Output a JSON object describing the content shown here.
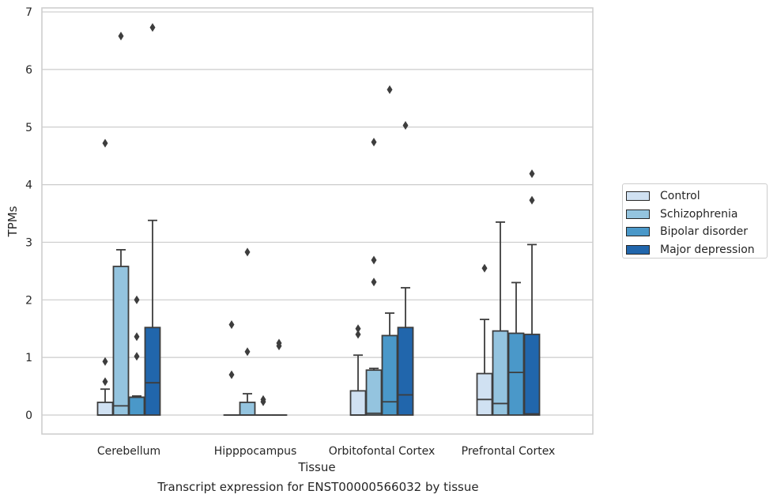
{
  "chart_data": {
    "type": "box",
    "title": "",
    "caption": "Transcript expression for ENST00000566032 by tissue",
    "xlabel": "Tissue",
    "ylabel": "TPMs",
    "ylim": [
      -0.32,
      7.07
    ],
    "yticks": [
      "0",
      "1",
      "2",
      "3",
      "4",
      "5",
      "6",
      "7"
    ],
    "grid": "horizontal",
    "legend_position": "right",
    "categories": [
      "Cerebellum",
      "Hipppocampus",
      "Orbitofontal Cortex",
      "Prefrontal Cortex"
    ],
    "series": [
      {
        "name": "Control",
        "color": "#d0e1f2",
        "boxes": [
          {
            "q1": 0.0,
            "median": 0.0,
            "q3": 0.22,
            "whislo": 0.0,
            "whishi": 0.45,
            "fliers": [
              0.58,
              0.93,
              4.72
            ]
          },
          {
            "q1": 0.0,
            "median": 0.0,
            "q3": 0.0,
            "whislo": 0.0,
            "whishi": 0.0,
            "fliers": [
              0.7,
              1.57
            ]
          },
          {
            "q1": 0.0,
            "median": 0.0,
            "q3": 0.42,
            "whislo": 0.0,
            "whishi": 1.04,
            "fliers": [
              1.4,
              1.5
            ]
          },
          {
            "q1": 0.0,
            "median": 0.27,
            "q3": 0.72,
            "whislo": 0.0,
            "whishi": 1.66,
            "fliers": [
              2.55
            ]
          }
        ]
      },
      {
        "name": "Schizophrenia",
        "color": "#94c4df",
        "boxes": [
          {
            "q1": 0.0,
            "median": 0.16,
            "q3": 2.58,
            "whislo": 0.0,
            "whishi": 2.87,
            "fliers": [
              6.58
            ]
          },
          {
            "q1": 0.0,
            "median": 0.0,
            "q3": 0.22,
            "whislo": 0.0,
            "whishi": 0.37,
            "fliers": [
              1.1,
              2.83
            ]
          },
          {
            "q1": 0.0,
            "median": 0.03,
            "q3": 0.78,
            "whislo": 0.0,
            "whishi": 0.81,
            "fliers": [
              2.31,
              2.69,
              4.74
            ]
          },
          {
            "q1": 0.0,
            "median": 0.2,
            "q3": 1.46,
            "whislo": 0.0,
            "whishi": 3.35,
            "fliers": []
          }
        ]
      },
      {
        "name": "Bipolar disorder",
        "color": "#4a98c9",
        "boxes": [
          {
            "q1": 0.0,
            "median": 0.31,
            "q3": 0.31,
            "whislo": 0.0,
            "whishi": 0.33,
            "fliers": [
              1.02,
              1.36,
              2.0
            ]
          },
          {
            "q1": 0.0,
            "median": 0.0,
            "q3": 0.0,
            "whislo": 0.0,
            "whishi": 0.0,
            "fliers": [
              0.23,
              0.27
            ]
          },
          {
            "q1": 0.0,
            "median": 0.23,
            "q3": 1.38,
            "whislo": 0.0,
            "whishi": 1.77,
            "fliers": [
              5.65
            ]
          },
          {
            "q1": 0.0,
            "median": 0.74,
            "q3": 1.42,
            "whislo": 0.0,
            "whishi": 2.3,
            "fliers": []
          }
        ]
      },
      {
        "name": "Major depression",
        "color": "#2166ac",
        "boxes": [
          {
            "q1": 0.0,
            "median": 0.56,
            "q3": 1.52,
            "whislo": 0.0,
            "whishi": 3.38,
            "fliers": [
              6.73
            ]
          },
          {
            "q1": 0.0,
            "median": 0.0,
            "q3": 0.0,
            "whislo": 0.0,
            "whishi": 0.0,
            "fliers": [
              1.2,
              1.25
            ]
          },
          {
            "q1": 0.0,
            "median": 0.35,
            "q3": 1.52,
            "whislo": 0.0,
            "whishi": 2.21,
            "fliers": [
              5.03
            ]
          },
          {
            "q1": 0.0,
            "median": 0.02,
            "q3": 1.4,
            "whislo": 0.0,
            "whishi": 2.96,
            "fliers": [
              3.73,
              4.19
            ]
          }
        ]
      }
    ]
  }
}
